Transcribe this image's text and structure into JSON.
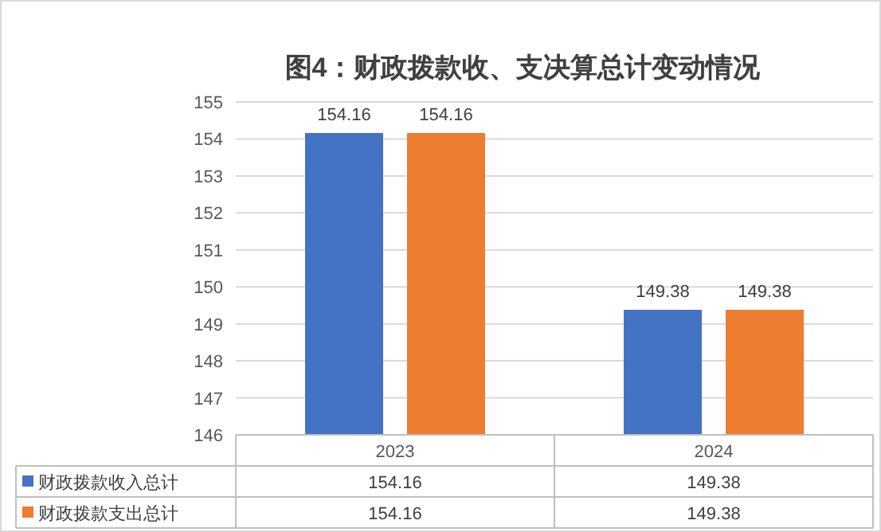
{
  "chart_data": {
    "type": "bar",
    "title": "图4：财政拨款收、支决算总计变动情况",
    "categories": [
      "2023",
      "2024"
    ],
    "series": [
      {
        "name": "财政拨款收入总计",
        "color": "#4472c4",
        "values": [
          154.16,
          149.38
        ]
      },
      {
        "name": "财政拨款支出总计",
        "color": "#ed7d31",
        "values": [
          154.16,
          149.38
        ]
      }
    ],
    "ylim": [
      146,
      155
    ],
    "yticks": [
      146,
      147,
      148,
      149,
      150,
      151,
      152,
      153,
      154,
      155
    ],
    "grid": "y",
    "legend": "bottom",
    "data_labels": true,
    "annotations": [
      "154.16",
      "149.38",
      "154.16",
      "149.38"
    ]
  }
}
